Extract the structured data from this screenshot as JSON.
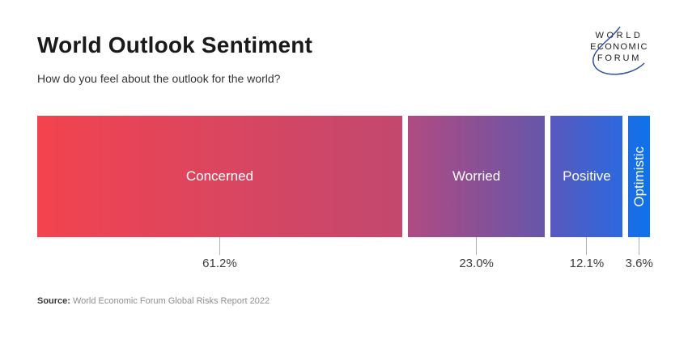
{
  "header": {
    "title": "World Outlook Sentiment",
    "subtitle": "How do you feel about the outlook for the world?"
  },
  "logo": {
    "lines": [
      "WORLD",
      "ECONOMIC",
      "FORUM"
    ],
    "swoosh_color": "#31509e"
  },
  "chart_data": {
    "type": "bar",
    "variant": "proportional-horizontal-stacked",
    "title": "World Outlook Sentiment",
    "question": "How do you feel about the outlook for the world?",
    "categories": [
      "Concerned",
      "Worried",
      "Positive",
      "Optimistic"
    ],
    "values": [
      61.2,
      23.0,
      12.1,
      3.6
    ],
    "value_labels": [
      "61.2%",
      "23.0%",
      "12.1%",
      "3.6%"
    ],
    "segment_gradients": [
      [
        "#f3434f",
        "#c2486f"
      ],
      [
        "#b04a81",
        "#6656aa"
      ],
      [
        "#5a58bd",
        "#2c68de"
      ],
      [
        "#1d6ce3",
        "#0f72ea"
      ]
    ],
    "bar_label_color": "#ffffff",
    "tick_color": "#b0b0b0",
    "legend_position": "none",
    "grid": false,
    "vertical_label_threshold": 6
  },
  "source": {
    "prefix": "Source:",
    "text": "World Economic Forum Global Risks Report 2022"
  }
}
